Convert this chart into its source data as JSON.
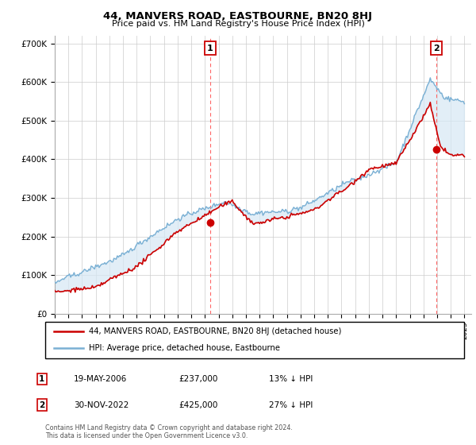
{
  "title": "44, MANVERS ROAD, EASTBOURNE, BN20 8HJ",
  "subtitle": "Price paid vs. HM Land Registry's House Price Index (HPI)",
  "ylabel_ticks": [
    "£0",
    "£100K",
    "£200K",
    "£300K",
    "£400K",
    "£500K",
    "£600K",
    "£700K"
  ],
  "ytick_values": [
    0,
    100000,
    200000,
    300000,
    400000,
    500000,
    600000,
    700000
  ],
  "ylim": [
    0,
    720000
  ],
  "xlim_start": 1995.0,
  "xlim_end": 2025.5,
  "sale1_x": 2006.38,
  "sale1_price": 237000,
  "sale1_label": "1",
  "sale1_date": "19-MAY-2006",
  "sale1_amount": "£237,000",
  "sale1_hpi": "13% ↓ HPI",
  "sale2_x": 2022.92,
  "sale2_price": 425000,
  "sale2_label": "2",
  "sale2_date": "30-NOV-2022",
  "sale2_amount": "£425,000",
  "sale2_hpi": "27% ↓ HPI",
  "legend_line1": "44, MANVERS ROAD, EASTBOURNE, BN20 8HJ (detached house)",
  "legend_line2": "HPI: Average price, detached house, Eastbourne",
  "footer": "Contains HM Land Registry data © Crown copyright and database right 2024.\nThis data is licensed under the Open Government Licence v3.0.",
  "line_color_red": "#cc0000",
  "line_color_blue": "#7ab0d4",
  "fill_color_blue": "#d6e8f5",
  "marker_color_red": "#cc0000",
  "grid_color": "#cccccc",
  "vline_color": "#ff6666",
  "box_edge_color": "#cc0000",
  "seed": 42
}
